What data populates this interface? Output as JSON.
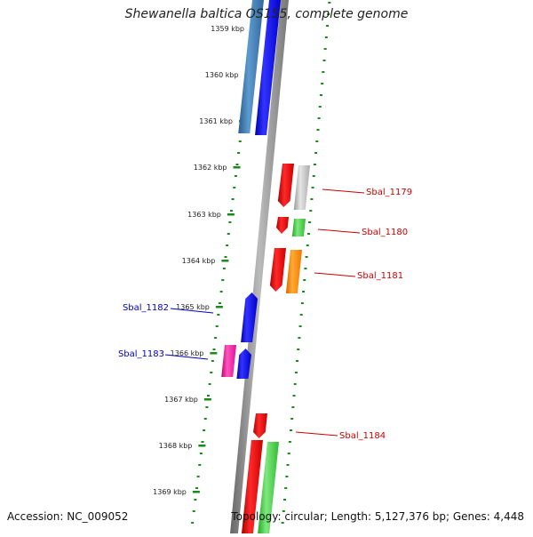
{
  "title": "Shewanella baltica OS155, complete genome",
  "footer": {
    "accession": "Accession: NC_009052",
    "summary": "Topology: circular; Length: 5,127,376 bp; Genes: 4,448"
  },
  "ticks": [
    "1359 kbp",
    "1360 kbp",
    "1361 kbp",
    "1362 kbp",
    "1363 kbp",
    "1364 kbp",
    "1365 kbp",
    "1366 kbp",
    "1367 kbp",
    "1368 kbp",
    "1369 kbp"
  ],
  "gene_labels": [
    {
      "text": "Sbal_1179",
      "color": "#cc0000",
      "side": "right"
    },
    {
      "text": "Sbal_1180",
      "color": "#cc0000",
      "side": "right"
    },
    {
      "text": "Sbal_1181",
      "color": "#cc0000",
      "side": "right"
    },
    {
      "text": "Sbal_1182",
      "color": "#0000bb",
      "side": "left"
    },
    {
      "text": "Sbal_1183",
      "color": "#0000bb",
      "side": "left"
    },
    {
      "text": "Sbal_1184",
      "color": "#cc0000",
      "side": "right"
    }
  ],
  "colors": {
    "backbone": "#888888",
    "tick_mark": "#1a8a1a",
    "blue": "#0000ee",
    "steelblue": "#3a78b0",
    "red": "#ee0000",
    "green": "#33cc33",
    "orange": "#ff8800",
    "gray": "#bbbbbb",
    "magenta": "#ee1199"
  }
}
